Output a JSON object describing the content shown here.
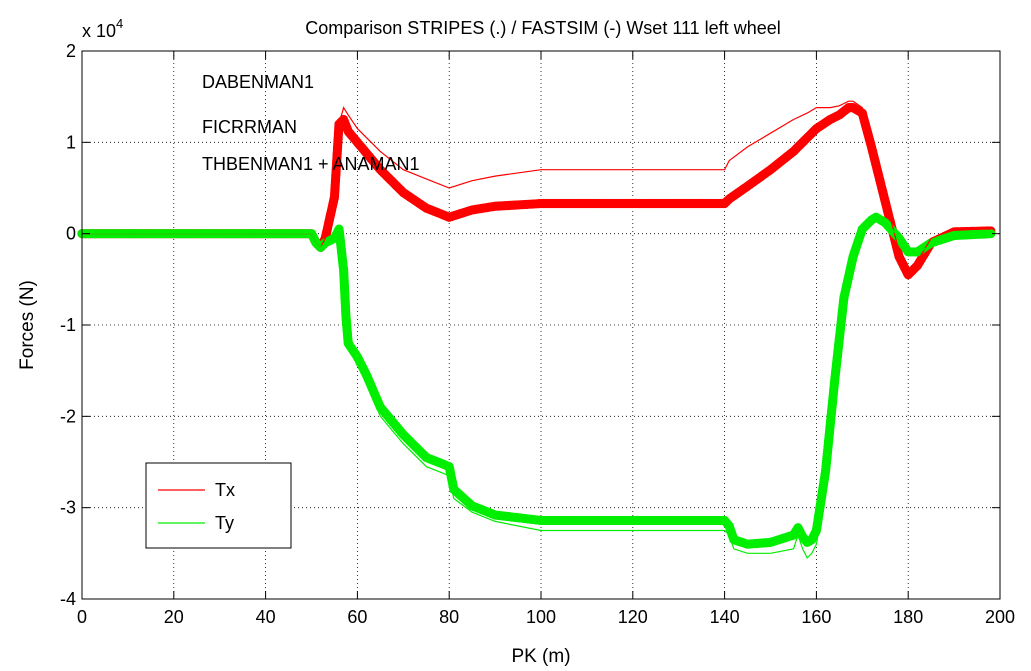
{
  "chart_data": {
    "type": "line",
    "title": "Comparison STRIPES (.) / FASTSIM (-) Wset 111 left wheel",
    "xlabel": "PK (m)",
    "ylabel": "Forces (N)",
    "y_exponent_label": "x 10",
    "y_exponent": "4",
    "xlim": [
      0,
      200
    ],
    "ylim": [
      -4,
      2
    ],
    "x_ticks": [
      0,
      20,
      40,
      60,
      80,
      100,
      120,
      140,
      160,
      180,
      200
    ],
    "y_ticks": [
      -4,
      -3,
      -2,
      -1,
      0,
      1,
      2
    ],
    "grid": true,
    "legend_position": "bottom-left",
    "annotations": [
      "DABENMAN1",
      "FICRRMAN",
      "THBENMAN1 + ANAMAN1"
    ],
    "series": [
      {
        "name": "Tx",
        "style": "line",
        "color": "#ff0000",
        "x": [
          0,
          15,
          50,
          51,
          52,
          53,
          55,
          56,
          57,
          58,
          60,
          65,
          70,
          75,
          80,
          85,
          90,
          100,
          110,
          120,
          130,
          140,
          141,
          145,
          150,
          155,
          158,
          160,
          163,
          165,
          167,
          168,
          170,
          172,
          175,
          178,
          180,
          182,
          185,
          190,
          198
        ],
        "y": [
          0,
          0,
          0,
          -0.1,
          -0.15,
          -0.05,
          0.5,
          1.2,
          1.38,
          1.3,
          1.15,
          0.9,
          0.7,
          0.6,
          0.5,
          0.58,
          0.63,
          0.7,
          0.7,
          0.7,
          0.7,
          0.7,
          0.8,
          0.95,
          1.1,
          1.25,
          1.32,
          1.38,
          1.38,
          1.4,
          1.45,
          1.45,
          1.38,
          1.0,
          0.4,
          -0.2,
          -0.45,
          -0.3,
          -0.05,
          0.05,
          0.05
        ]
      },
      {
        "name": "Ty",
        "style": "line",
        "color": "#00ee00",
        "x": [
          0,
          50,
          51,
          52,
          53,
          55,
          56,
          57,
          58,
          60,
          62,
          65,
          70,
          75,
          80,
          81,
          85,
          90,
          100,
          110,
          120,
          130,
          140,
          141,
          142,
          145,
          150,
          155,
          156,
          157,
          158,
          159,
          160,
          162,
          164,
          166,
          168,
          170,
          171,
          172,
          173,
          175,
          178,
          180,
          182,
          185,
          190,
          198
        ],
        "y": [
          0,
          0,
          -0.1,
          -0.15,
          -0.1,
          -0.05,
          0.05,
          -1.0,
          -1.2,
          -1.4,
          -1.65,
          -2.0,
          -2.3,
          -2.55,
          -2.65,
          -2.9,
          -3.05,
          -3.15,
          -3.25,
          -3.25,
          -3.25,
          -3.25,
          -3.25,
          -3.3,
          -3.45,
          -3.5,
          -3.5,
          -3.45,
          -3.3,
          -3.45,
          -3.55,
          -3.5,
          -3.4,
          -2.8,
          -1.8,
          -0.9,
          -0.4,
          0.0,
          0.1,
          0.15,
          0.18,
          0.15,
          -0.05,
          -0.2,
          -0.22,
          -0.12,
          -0.02,
          0.0
        ]
      },
      {
        "name": "",
        "style": "dots",
        "color": "#ff0000",
        "x": [
          0,
          15,
          50,
          51,
          52,
          53,
          55,
          56,
          57,
          58,
          60,
          65,
          70,
          75,
          80,
          85,
          90,
          100,
          110,
          120,
          130,
          140,
          141,
          145,
          150,
          155,
          158,
          160,
          163,
          165,
          167,
          168,
          170,
          172,
          175,
          178,
          180,
          182,
          185,
          190,
          198
        ],
        "y": [
          0,
          0,
          0,
          -0.1,
          -0.15,
          -0.05,
          0.4,
          1.2,
          1.25,
          1.12,
          1.0,
          0.7,
          0.45,
          0.28,
          0.18,
          0.26,
          0.3,
          0.33,
          0.33,
          0.33,
          0.33,
          0.33,
          0.38,
          0.52,
          0.7,
          0.9,
          1.05,
          1.15,
          1.25,
          1.3,
          1.38,
          1.38,
          1.32,
          0.95,
          0.35,
          -0.25,
          -0.45,
          -0.35,
          -0.1,
          0.02,
          0.03
        ]
      },
      {
        "name": "",
        "style": "dots",
        "color": "#00ee00",
        "x": [
          0,
          50,
          51,
          52,
          53,
          55,
          56,
          57,
          57.5,
          58,
          60,
          62,
          65,
          70,
          75,
          80,
          81,
          85,
          90,
          100,
          110,
          120,
          130,
          140,
          141,
          142,
          145,
          150,
          155,
          156,
          157,
          158,
          159,
          160,
          162,
          164,
          166,
          168,
          170,
          171,
          172,
          173,
          175,
          178,
          180,
          182,
          185,
          190,
          198
        ],
        "y": [
          0,
          0,
          -0.1,
          -0.15,
          -0.1,
          -0.05,
          0.05,
          -0.4,
          -0.9,
          -1.2,
          -1.35,
          -1.55,
          -1.9,
          -2.2,
          -2.45,
          -2.55,
          -2.8,
          -2.98,
          -3.08,
          -3.14,
          -3.14,
          -3.14,
          -3.14,
          -3.14,
          -3.2,
          -3.35,
          -3.4,
          -3.38,
          -3.3,
          -3.22,
          -3.32,
          -3.38,
          -3.35,
          -3.25,
          -2.6,
          -1.6,
          -0.7,
          -0.25,
          0.05,
          0.1,
          0.15,
          0.18,
          0.12,
          -0.05,
          -0.2,
          -0.2,
          -0.1,
          -0.02,
          0.0
        ]
      }
    ]
  }
}
